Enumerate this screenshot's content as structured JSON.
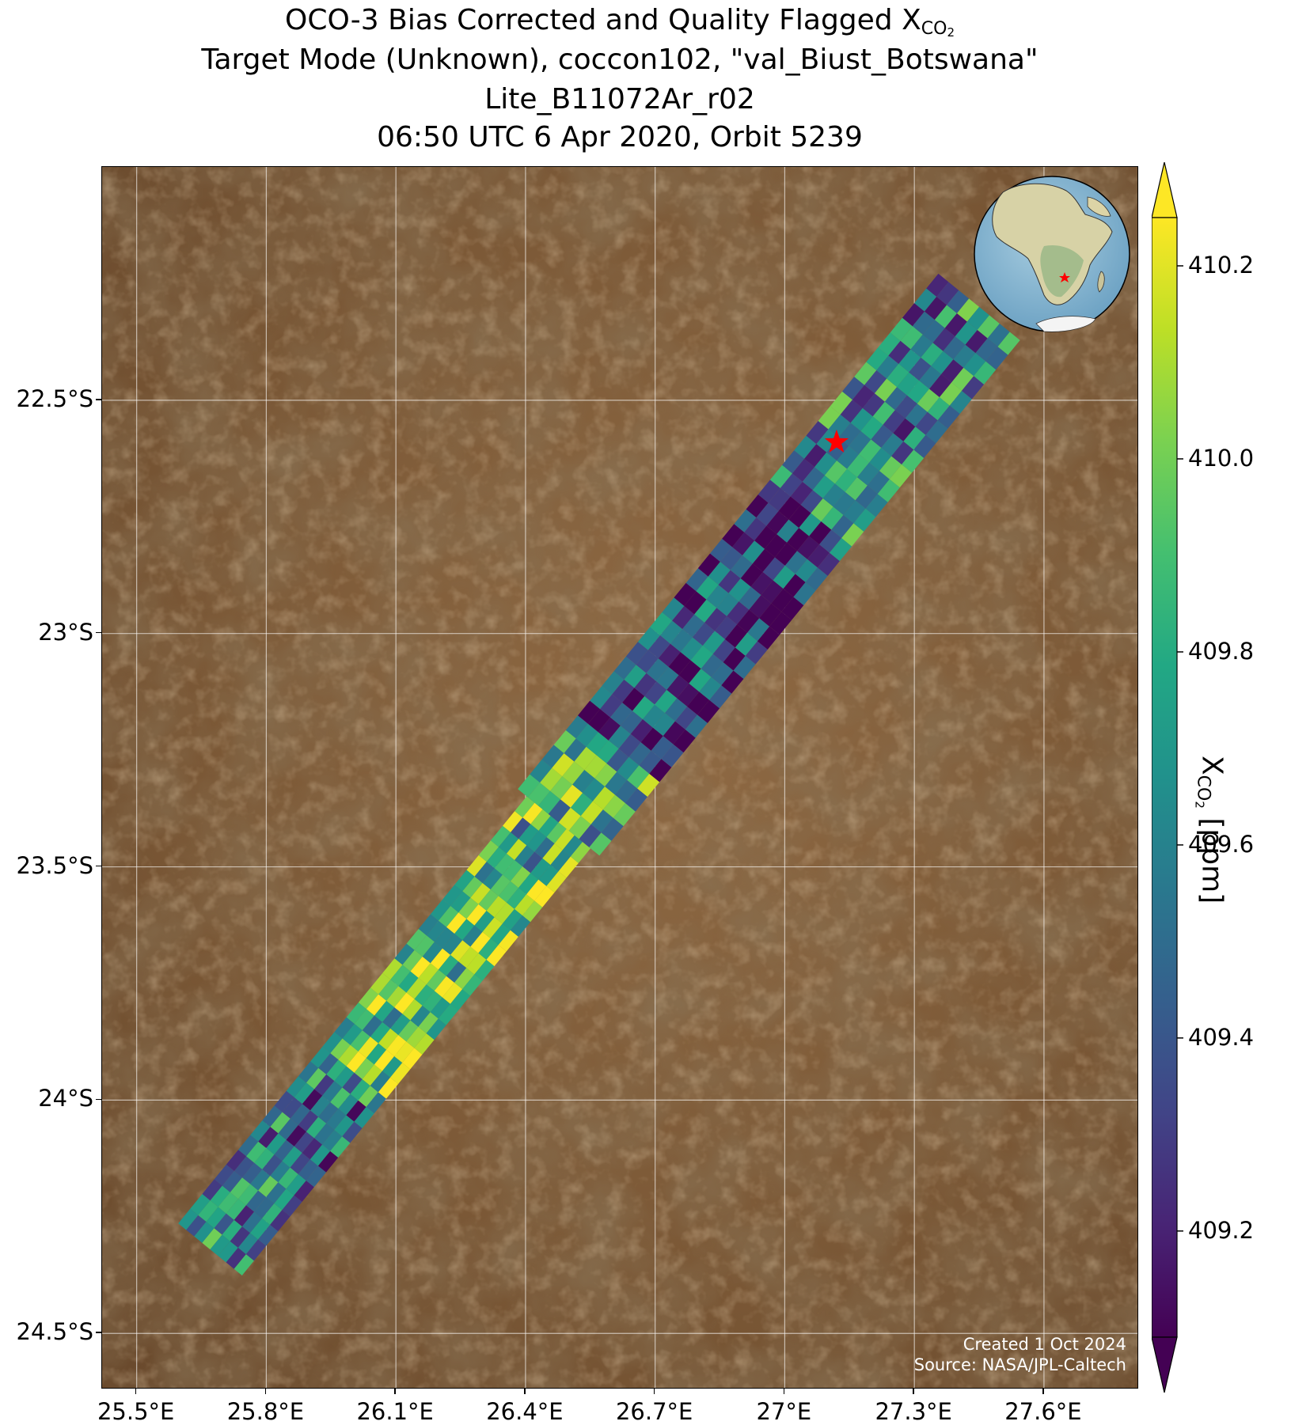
{
  "title": {
    "line1_prefix": "OCO-3 Bias Corrected and Quality Flagged X",
    "line1_subscript": "CO",
    "line1_subscript2": "2",
    "line2": "Target Mode (Unknown), coccon102, \"val_Biust_Botswana\"",
    "line3": "Lite_B11072Ar_r02",
    "line4": "06:50 UTC 6 Apr 2020, Orbit 5239"
  },
  "map": {
    "lon_range": [
      25.42,
      27.82
    ],
    "lat_range": [
      -24.62,
      -22.0
    ],
    "lon_ticks": [
      "25.5°E",
      "25.8°E",
      "26.1°E",
      "26.4°E",
      "26.7°E",
      "27°E",
      "27.3°E",
      "27.6°E"
    ],
    "lon_tick_values": [
      25.5,
      25.8,
      26.1,
      26.4,
      26.7,
      27.0,
      27.3,
      27.6
    ],
    "lat_ticks": [
      "22.5°S",
      "23°S",
      "23.5°S",
      "24°S",
      "24.5°S"
    ],
    "lat_tick_values": [
      -22.5,
      -23.0,
      -23.5,
      -24.0,
      -24.5
    ],
    "gridlines": true,
    "target_marker": {
      "lon": 27.12,
      "lat": -22.59,
      "symbol": "star",
      "color": "#ff0000"
    },
    "swath": {
      "start": {
        "lon": 25.67,
        "lat": -24.32
      },
      "end": {
        "lon": 27.45,
        "lat": -22.3
      },
      "footprint_count_along": 64,
      "footprint_count_across": 8
    },
    "credits": {
      "created": "Created 1 Oct 2024",
      "source": "Source: NASA/JPL-Caltech"
    },
    "inset_globe": {
      "label": "globe-inset",
      "location_marker": "red star over southern Africa"
    }
  },
  "colorbar": {
    "colormap": "viridis",
    "vmin": 409.09,
    "vmax": 410.25,
    "ticks": [
      "409.2",
      "409.4",
      "409.6",
      "409.8",
      "410.0",
      "410.2"
    ],
    "tick_values": [
      409.2,
      409.4,
      409.6,
      409.8,
      410.0,
      410.2
    ],
    "extend": "both",
    "label_prefix": "X",
    "label_sub": "CO",
    "label_sub2": "2",
    "label_suffix": " [ppm]"
  },
  "colors": {
    "land_dark": "#6b4a2c",
    "land_mid": "#8a6440",
    "land_light": "#a47b50",
    "gridline": "#ffffff",
    "marker": "#ff0000"
  }
}
